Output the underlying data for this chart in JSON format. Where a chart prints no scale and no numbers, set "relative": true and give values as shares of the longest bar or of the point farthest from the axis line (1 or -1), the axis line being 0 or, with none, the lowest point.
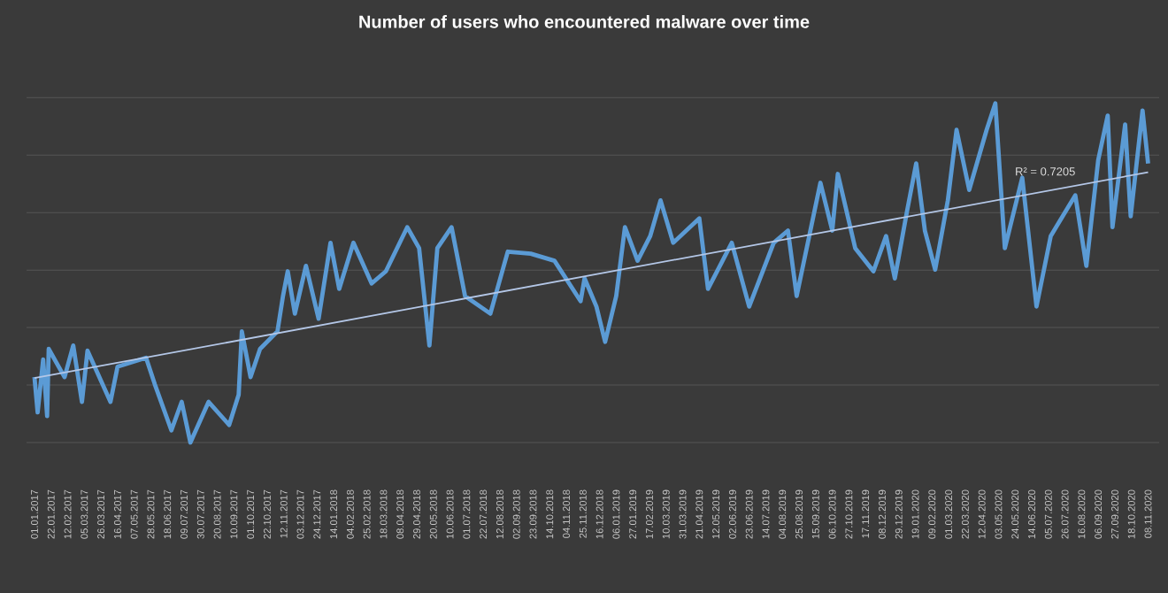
{
  "chart_data": {
    "type": "line",
    "title": "Number of users who encountered malware over time",
    "relative": true,
    "grid": "y",
    "line_style": "solid",
    "xlim": [
      "2016-12-22",
      "2020-11-22"
    ],
    "xticks": [
      {
        "value": "2017-01-01",
        "label": "01.01.2017"
      },
      {
        "value": "2017-01-22",
        "label": "22.01.2017"
      },
      {
        "value": "2017-02-12",
        "label": "12.02.2017"
      },
      {
        "value": "2017-03-05",
        "label": "05.03.2017"
      },
      {
        "value": "2017-03-26",
        "label": "26.03.2017"
      },
      {
        "value": "2017-04-16",
        "label": "16.04.2017"
      },
      {
        "value": "2017-05-07",
        "label": "07.05.2017"
      },
      {
        "value": "2017-05-28",
        "label": "28.05.2017"
      },
      {
        "value": "2017-06-18",
        "label": "18.06.2017"
      },
      {
        "value": "2017-07-09",
        "label": "09.07.2017"
      },
      {
        "value": "2017-07-30",
        "label": "30.07.2017"
      },
      {
        "value": "2017-08-20",
        "label": "20.08.2017"
      },
      {
        "value": "2017-09-10",
        "label": "10.09.2017"
      },
      {
        "value": "2017-10-01",
        "label": "01.10.2017"
      },
      {
        "value": "2017-10-22",
        "label": "22.10.2017"
      },
      {
        "value": "2017-11-12",
        "label": "12.11.2017"
      },
      {
        "value": "2017-12-03",
        "label": "03.12.2017"
      },
      {
        "value": "2017-12-24",
        "label": "24.12.2017"
      },
      {
        "value": "2018-01-14",
        "label": "14.01.2018"
      },
      {
        "value": "2018-02-04",
        "label": "04.02.2018"
      },
      {
        "value": "2018-02-25",
        "label": "25.02.2018"
      },
      {
        "value": "2018-03-18",
        "label": "18.03.2018"
      },
      {
        "value": "2018-04-08",
        "label": "08.04.2018"
      },
      {
        "value": "2018-04-29",
        "label": "29.04.2018"
      },
      {
        "value": "2018-05-20",
        "label": "20.05.2018"
      },
      {
        "value": "2018-06-10",
        "label": "10.06.2018"
      },
      {
        "value": "2018-07-01",
        "label": "01.07.2018"
      },
      {
        "value": "2018-07-22",
        "label": "22.07.2018"
      },
      {
        "value": "2018-08-12",
        "label": "12.08.2018"
      },
      {
        "value": "2018-09-02",
        "label": "02.09.2018"
      },
      {
        "value": "2018-09-23",
        "label": "23.09.2018"
      },
      {
        "value": "2018-10-14",
        "label": "14.10.2018"
      },
      {
        "value": "2018-11-04",
        "label": "04.11.2018"
      },
      {
        "value": "2018-11-25",
        "label": "25.11.2018"
      },
      {
        "value": "2018-12-16",
        "label": "16.12.2018"
      },
      {
        "value": "2019-01-06",
        "label": "06.01.2019"
      },
      {
        "value": "2019-01-27",
        "label": "27.01.2019"
      },
      {
        "value": "2019-02-17",
        "label": "17.02.2019"
      },
      {
        "value": "2019-03-10",
        "label": "10.03.2019"
      },
      {
        "value": "2019-03-31",
        "label": "31.03.2019"
      },
      {
        "value": "2019-04-21",
        "label": "21.04.2019"
      },
      {
        "value": "2019-05-12",
        "label": "12.05.2019"
      },
      {
        "value": "2019-06-02",
        "label": "02.06.2019"
      },
      {
        "value": "2019-06-23",
        "label": "23.06.2019"
      },
      {
        "value": "2019-07-14",
        "label": "14.07.2019"
      },
      {
        "value": "2019-08-04",
        "label": "04.08.2019"
      },
      {
        "value": "2019-08-25",
        "label": "25.08.2019"
      },
      {
        "value": "2019-09-15",
        "label": "15.09.2019"
      },
      {
        "value": "2019-10-06",
        "label": "06.10.2019"
      },
      {
        "value": "2019-10-27",
        "label": "27.10.2019"
      },
      {
        "value": "2019-11-17",
        "label": "17.11.2019"
      },
      {
        "value": "2019-12-08",
        "label": "08.12.2019"
      },
      {
        "value": "2019-12-29",
        "label": "29.12.2019"
      },
      {
        "value": "2020-01-19",
        "label": "19.01.2020"
      },
      {
        "value": "2020-02-09",
        "label": "09.02.2020"
      },
      {
        "value": "2020-03-01",
        "label": "01.03.2020"
      },
      {
        "value": "2020-03-22",
        "label": "22.03.2020"
      },
      {
        "value": "2020-04-12",
        "label": "12.04.2020"
      },
      {
        "value": "2020-05-03",
        "label": "03.05.2020"
      },
      {
        "value": "2020-05-24",
        "label": "24.05.2020"
      },
      {
        "value": "2020-06-14",
        "label": "14.06.2020"
      },
      {
        "value": "2020-07-05",
        "label": "05.07.2020"
      },
      {
        "value": "2020-07-26",
        "label": "26.07.2020"
      },
      {
        "value": "2020-08-16",
        "label": "16.08.2020"
      },
      {
        "value": "2020-09-06",
        "label": "06.09.2020"
      },
      {
        "value": "2020-09-27",
        "label": "27.09.2020"
      },
      {
        "value": "2020-10-18",
        "label": "18.10.2020"
      },
      {
        "value": "2020-11-08",
        "label": "08.11.2020"
      }
    ],
    "series": [
      {
        "color": "#5b9bd5",
        "x": [
          "2017-01-01",
          "2017-01-05",
          "2017-01-12",
          "2017-01-17",
          "2017-01-19",
          "2017-02-08",
          "2017-02-19",
          "2017-03-02",
          "2017-03-09",
          "2017-04-07",
          "2017-04-16",
          "2017-05-22",
          "2017-06-02",
          "2017-06-23",
          "2017-07-06",
          "2017-07-17",
          "2017-08-09",
          "2017-09-04",
          "2017-09-16",
          "2017-09-20",
          "2017-10-01",
          "2017-10-13",
          "2017-11-04",
          "2017-11-11",
          "2017-11-17",
          "2017-11-26",
          "2017-12-10",
          "2017-12-26",
          "2018-01-10",
          "2018-01-21",
          "2018-02-08",
          "2018-03-03",
          "2018-03-21",
          "2018-04-17",
          "2018-05-02",
          "2018-05-15",
          "2018-05-25",
          "2018-06-12",
          "2018-06-29",
          "2018-07-31",
          "2018-08-22",
          "2018-09-20",
          "2018-10-20",
          "2018-11-22",
          "2018-11-27",
          "2018-12-12",
          "2018-12-23",
          "2019-01-06",
          "2019-01-17",
          "2019-02-02",
          "2019-02-18",
          "2019-03-03",
          "2019-03-19",
          "2019-04-21",
          "2019-05-02",
          "2019-06-01",
          "2019-06-23",
          "2019-07-24",
          "2019-08-11",
          "2019-08-22",
          "2019-09-21",
          "2019-10-06",
          "2019-10-13",
          "2019-11-04",
          "2019-11-27",
          "2019-12-13",
          "2019-12-24",
          "2020-01-08",
          "2020-01-20",
          "2020-01-31",
          "2020-02-13",
          "2020-02-29",
          "2020-03-11",
          "2020-03-27",
          "2020-04-18",
          "2020-04-29",
          "2020-05-11",
          "2020-06-02",
          "2020-06-20",
          "2020-07-08",
          "2020-08-08",
          "2020-08-22",
          "2020-09-06",
          "2020-09-18",
          "2020-09-24",
          "2020-10-10",
          "2020-10-17",
          "2020-11-01",
          "2020-11-08"
        ],
        "values": [
          0.193,
          0.089,
          0.245,
          0.078,
          0.276,
          0.193,
          0.286,
          0.12,
          0.271,
          0.12,
          0.224,
          0.25,
          0.172,
          0.036,
          0.12,
          0,
          0.12,
          0.052,
          0.141,
          0.328,
          0.193,
          0.276,
          0.328,
          0.432,
          0.505,
          0.38,
          0.521,
          0.365,
          0.589,
          0.453,
          0.589,
          0.469,
          0.505,
          0.635,
          0.573,
          0.286,
          0.573,
          0.635,
          0.432,
          0.38,
          0.563,
          0.557,
          0.536,
          0.417,
          0.484,
          0.401,
          0.297,
          0.432,
          0.635,
          0.536,
          0.609,
          0.714,
          0.589,
          0.661,
          0.453,
          0.589,
          0.401,
          0.589,
          0.625,
          0.432,
          0.766,
          0.625,
          0.792,
          0.573,
          0.505,
          0.609,
          0.484,
          0.677,
          0.823,
          0.625,
          0.51,
          0.714,
          0.922,
          0.745,
          0.922,
          1,
          0.573,
          0.781,
          0.401,
          0.609,
          0.729,
          0.521,
          0.833,
          0.964,
          0.635,
          0.938,
          0.667,
          0.979,
          0.823
        ]
      },
      {
        "type": "line",
        "color": "#b4c7e7",
        "x": [
          "2017-01-01",
          "2020-11-08"
        ],
        "values": [
          0.19,
          0.797
        ]
      }
    ],
    "annotations": [
      {
        "text": "R² = 0.7205",
        "x": "2020-07-01",
        "y": 0.76
      }
    ]
  }
}
